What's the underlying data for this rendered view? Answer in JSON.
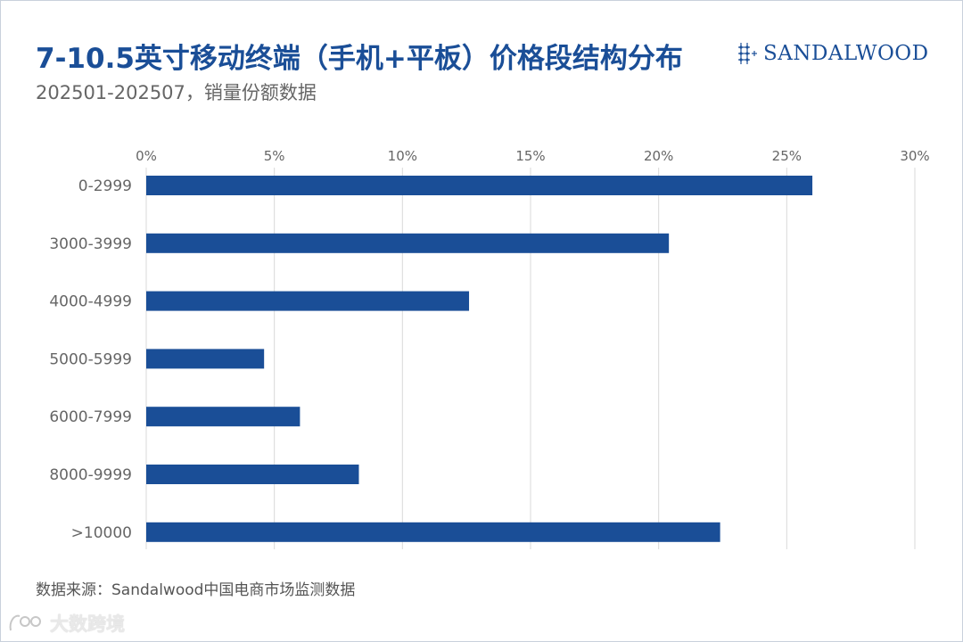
{
  "header": {
    "title": "7-10.5英寸移动终端（手机+平板）价格段结构分布",
    "subtitle": "202501-202507，销量份额数据"
  },
  "brand": {
    "name": "SANDALWOOD"
  },
  "footer": {
    "source": "数据来源：Sandalwood中国电商市场监测数据",
    "watermark": "大数跨境"
  },
  "colors": {
    "bar": "#1a4e97",
    "title": "#1a4e97",
    "grid": "#d9d9d9",
    "tick": "#666666"
  },
  "chart_data": {
    "type": "bar",
    "orientation": "horizontal",
    "categories": [
      "0-2999",
      "3000-3999",
      "4000-4999",
      "5000-5999",
      "6000-7999",
      "8000-9999",
      ">10000"
    ],
    "values": [
      26.0,
      20.4,
      12.6,
      4.6,
      6.0,
      8.3,
      22.4
    ],
    "value_unit": "%",
    "xlim": [
      0,
      30
    ],
    "xticks": [
      0,
      5,
      10,
      15,
      20,
      25,
      30
    ],
    "xtick_labels": [
      "0%",
      "5%",
      "10%",
      "15%",
      "20%",
      "25%",
      "30%"
    ],
    "x_axis_position": "top",
    "grid": true
  }
}
